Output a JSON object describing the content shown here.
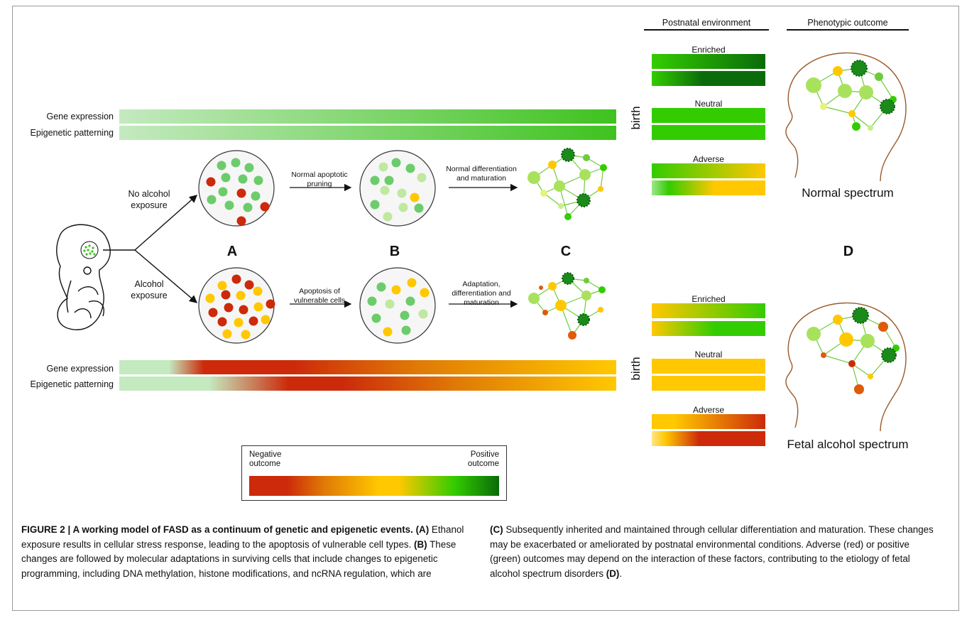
{
  "upper_rows": {
    "gene_expression": "Gene expression",
    "epigenetic_patterning": "Epigenetic patterning"
  },
  "lower_rows": {
    "gene_expression": "Gene expression",
    "epigenetic_patterning": "Epigenetic patterning"
  },
  "birth_label": "birth",
  "paths": {
    "no_alcohol": "No alcohol exposure",
    "alcohol": "Alcohol exposure"
  },
  "arrows": {
    "normal_pruning": "Normal apoptotic pruning",
    "normal_differentiation": "Normal differentiation and maturation",
    "apoptosis_vulnerable": "Apoptosis of vulnerable cells",
    "adaptation": "Adaptation, differentiation and maturation"
  },
  "panel_letters": {
    "a": "A",
    "b": "B",
    "c": "C",
    "d": "D"
  },
  "headers": {
    "postnatal": "Postnatal environment",
    "phenotypic": "Phenotypic outcome"
  },
  "environments": {
    "enriched": "Enriched",
    "neutral": "Neutral",
    "adverse": "Adverse"
  },
  "outcomes": {
    "normal": "Normal spectrum",
    "fetal": "Fetal alcohol spectrum"
  },
  "legend": {
    "negative": "Negative outcome",
    "positive": "Positive outcome"
  },
  "caption": {
    "title": "FIGURE 2 | A working model of FASD as a continuum of genetic and epigenetic events.",
    "ref_a": "(A)",
    "text_a": " Ethanol exposure results in cellular stress response, leading to the apoptosis of vulnerable cell types. ",
    "ref_b": "(B)",
    "text_b": " These changes are followed by molecular adaptations in surviving cells that include changes to epigenetic programming, including DNA methylation, histone modifications, and ncRNA regulation, which are ",
    "ref_c": "(C)",
    "text_c": " Subsequently inherited and maintained through cellular differentiation and maturation. These changes may be exacerbated or ameliorated by postnatal environmental conditions. Adverse (red) or positive (green) outcomes may depend on the interaction of these factors, contributing to the etiology of fetal alcohol spectrum disorders ",
    "ref_d": "(D)",
    "text_d": "."
  },
  "colors": {
    "dark_green": "#0a6b0a",
    "green": "#33cc00",
    "light_green": "#b5e6b0",
    "yellow": "#ffc800",
    "red": "#cc2a0a"
  }
}
